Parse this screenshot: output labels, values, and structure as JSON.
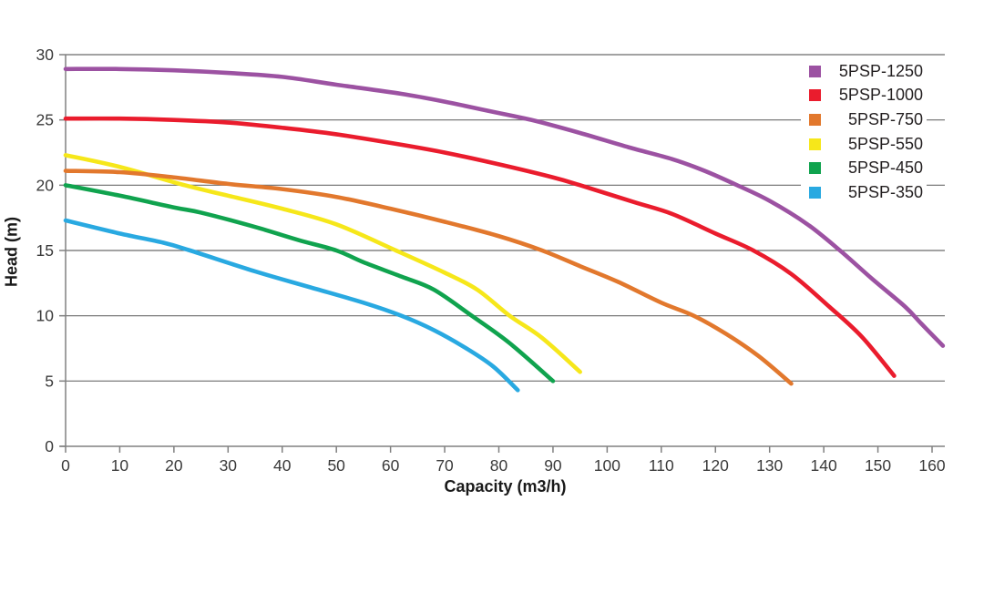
{
  "chart_data": {
    "type": "line",
    "title": "",
    "xlabel": "Capacity (m3/h)",
    "ylabel": "Head (m)",
    "xlim": [
      0,
      162.5
    ],
    "ylim": [
      0,
      30
    ],
    "xticks": [
      0,
      10,
      20,
      30,
      40,
      50,
      60,
      70,
      80,
      90,
      100,
      110,
      120,
      130,
      140,
      150,
      160
    ],
    "yticks": [
      0,
      5,
      10,
      15,
      20,
      25,
      30
    ],
    "grid": "horizontal",
    "legend_position": "top-right",
    "series": [
      {
        "name": "5PSP-1250",
        "color": "#9C52A2",
        "points": [
          [
            0,
            28.9
          ],
          [
            10,
            28.9
          ],
          [
            20,
            28.8
          ],
          [
            30,
            28.6
          ],
          [
            40,
            28.3
          ],
          [
            50,
            27.7
          ],
          [
            62,
            27.0
          ],
          [
            70,
            26.4
          ],
          [
            78,
            25.7
          ],
          [
            86,
            25.0
          ],
          [
            95,
            24.0
          ],
          [
            104,
            22.9
          ],
          [
            112,
            22.0
          ],
          [
            118,
            21.1
          ],
          [
            124,
            20.0
          ],
          [
            130,
            18.8
          ],
          [
            137,
            17.0
          ],
          [
            143,
            15.0
          ],
          [
            149,
            12.8
          ],
          [
            155,
            10.7
          ],
          [
            158,
            9.4
          ],
          [
            162,
            7.7
          ]
        ]
      },
      {
        "name": "5PSP-1000",
        "color": "#EA1C2D",
        "points": [
          [
            0,
            25.1
          ],
          [
            10,
            25.1
          ],
          [
            20,
            25.0
          ],
          [
            30,
            24.8
          ],
          [
            40,
            24.4
          ],
          [
            50,
            23.9
          ],
          [
            62,
            23.1
          ],
          [
            70,
            22.5
          ],
          [
            80,
            21.6
          ],
          [
            90,
            20.6
          ],
          [
            95,
            20.0
          ],
          [
            105,
            18.7
          ],
          [
            112,
            17.8
          ],
          [
            120,
            16.3
          ],
          [
            127,
            15.0
          ],
          [
            134,
            13.2
          ],
          [
            141,
            10.7
          ],
          [
            147,
            8.4
          ],
          [
            153,
            5.4
          ]
        ]
      },
      {
        "name": "5PSP-750",
        "color": "#E2782D",
        "points": [
          [
            0,
            21.1
          ],
          [
            10,
            21.0
          ],
          [
            20,
            20.6
          ],
          [
            30,
            20.1
          ],
          [
            40,
            19.7
          ],
          [
            50,
            19.1
          ],
          [
            60,
            18.2
          ],
          [
            70,
            17.2
          ],
          [
            80,
            16.1
          ],
          [
            88,
            15.0
          ],
          [
            95,
            13.8
          ],
          [
            102,
            12.6
          ],
          [
            110,
            11.0
          ],
          [
            116,
            10.0
          ],
          [
            122,
            8.6
          ],
          [
            128,
            6.9
          ],
          [
            134,
            4.8
          ]
        ]
      },
      {
        "name": "5PSP-550",
        "color": "#F6E71A",
        "points": [
          [
            0,
            22.3
          ],
          [
            10,
            21.4
          ],
          [
            22,
            20.0
          ],
          [
            30,
            19.2
          ],
          [
            40,
            18.2
          ],
          [
            50,
            17.0
          ],
          [
            61,
            15.0
          ],
          [
            70,
            13.3
          ],
          [
            76,
            12.0
          ],
          [
            82,
            10.0
          ],
          [
            88,
            8.3
          ],
          [
            95,
            5.7
          ]
        ]
      },
      {
        "name": "5PSP-450",
        "color": "#10A34E",
        "points": [
          [
            0,
            20.0
          ],
          [
            10,
            19.2
          ],
          [
            20,
            18.3
          ],
          [
            25,
            17.9
          ],
          [
            35,
            16.8
          ],
          [
            43,
            15.8
          ],
          [
            50,
            15.0
          ],
          [
            55,
            14.1
          ],
          [
            62,
            13.0
          ],
          [
            68,
            12.0
          ],
          [
            75,
            10.0
          ],
          [
            82,
            7.9
          ],
          [
            90,
            5.0
          ]
        ]
      },
      {
        "name": "5PSP-350",
        "color": "#29A9E1",
        "points": [
          [
            0,
            17.3
          ],
          [
            10,
            16.3
          ],
          [
            18,
            15.6
          ],
          [
            23,
            15.0
          ],
          [
            35,
            13.4
          ],
          [
            45,
            12.2
          ],
          [
            55,
            11.0
          ],
          [
            62,
            10.0
          ],
          [
            68,
            8.9
          ],
          [
            74,
            7.5
          ],
          [
            79,
            6.1
          ],
          [
            83.5,
            4.3
          ]
        ]
      }
    ],
    "colors": {
      "grid": "#6b6b6b",
      "axis": "#808080",
      "tick_label": "#3a3a3a",
      "axis_title": "#1a1a1a",
      "background": "#ffffff"
    }
  }
}
